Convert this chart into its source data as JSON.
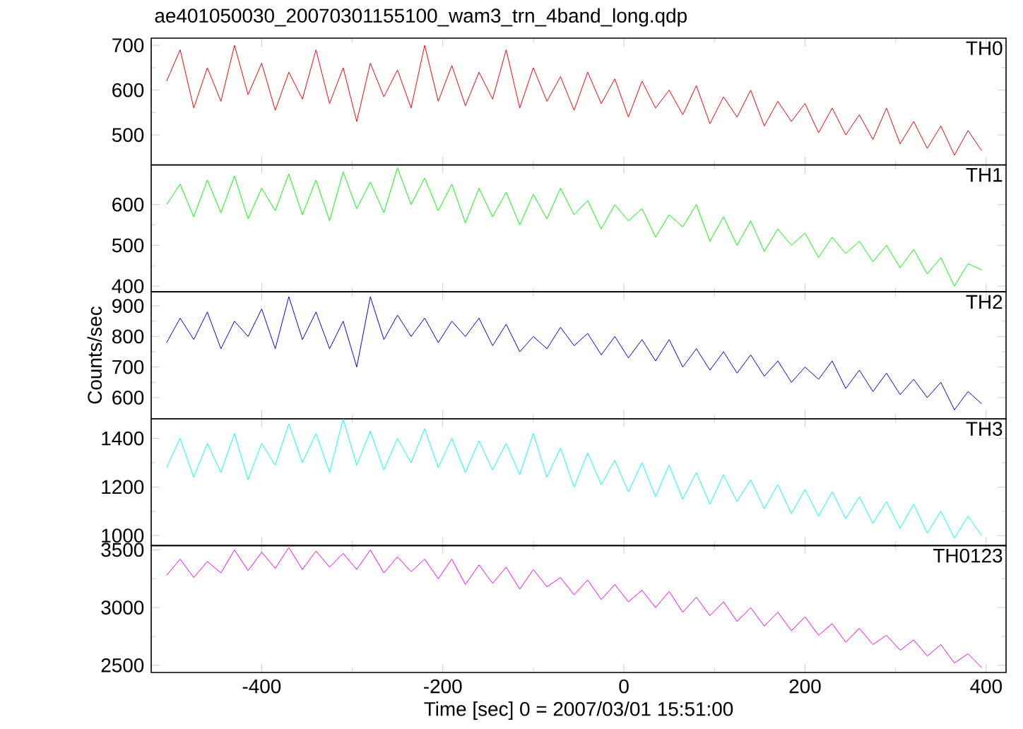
{
  "chart_data": [
    {
      "type": "line",
      "title": "ae401050030_20070301155100_wam3_trn_4band_long.qdp",
      "xlim": [
        -522,
        422
      ],
      "xticks": [
        -400,
        -200,
        0,
        200,
        400
      ],
      "ylim": [
        433,
        716
      ],
      "yticks": [
        500,
        600,
        700
      ],
      "tick_labels": "y",
      "x": [
        -505,
        -490,
        -475,
        -460,
        -445,
        -430,
        -415,
        -400,
        -385,
        -370,
        -355,
        -340,
        -325,
        -310,
        -295,
        -280,
        -265,
        -250,
        -235,
        -220,
        -205,
        -190,
        -175,
        -160,
        -145,
        -130,
        -115,
        -100,
        -85,
        -70,
        -55,
        -40,
        -25,
        -10,
        5,
        20,
        35,
        50,
        65,
        80,
        95,
        110,
        125,
        140,
        155,
        170,
        185,
        200,
        215,
        230,
        245,
        260,
        275,
        290,
        305,
        320,
        335,
        350,
        365,
        380,
        395
      ],
      "series": [
        {
          "name": "TH0",
          "color": "#ff0000",
          "values": [
            620,
            690,
            560,
            650,
            575,
            700,
            590,
            660,
            555,
            640,
            580,
            690,
            570,
            650,
            530,
            660,
            585,
            645,
            560,
            700,
            575,
            655,
            565,
            640,
            580,
            690,
            560,
            650,
            575,
            630,
            555,
            640,
            570,
            625,
            540,
            620,
            560,
            600,
            545,
            610,
            525,
            585,
            540,
            600,
            520,
            575,
            530,
            570,
            505,
            560,
            500,
            545,
            490,
            560,
            480,
            530,
            470,
            520,
            455,
            510,
            465
          ]
        }
      ]
    },
    {
      "type": "line",
      "xlim": [
        -522,
        422
      ],
      "xticks": [
        -400,
        -200,
        0,
        200,
        400
      ],
      "ylim": [
        386,
        697
      ],
      "yticks": [
        400,
        500,
        600
      ],
      "tick_labels": "y",
      "x": [
        -505,
        -490,
        -475,
        -460,
        -445,
        -430,
        -415,
        -400,
        -385,
        -370,
        -355,
        -340,
        -325,
        -310,
        -295,
        -280,
        -265,
        -250,
        -235,
        -220,
        -205,
        -190,
        -175,
        -160,
        -145,
        -130,
        -115,
        -100,
        -85,
        -70,
        -55,
        -40,
        -25,
        -10,
        5,
        20,
        35,
        50,
        65,
        80,
        95,
        110,
        125,
        140,
        155,
        170,
        185,
        200,
        215,
        230,
        245,
        260,
        275,
        290,
        305,
        320,
        335,
        350,
        365,
        380,
        395
      ],
      "series": [
        {
          "name": "TH1",
          "color": "#00ff00",
          "values": [
            600,
            650,
            570,
            660,
            580,
            670,
            565,
            640,
            585,
            675,
            575,
            660,
            560,
            680,
            590,
            655,
            580,
            690,
            600,
            665,
            585,
            650,
            555,
            640,
            570,
            630,
            550,
            625,
            565,
            640,
            575,
            610,
            540,
            600,
            560,
            590,
            520,
            575,
            545,
            600,
            510,
            570,
            500,
            560,
            485,
            540,
            500,
            530,
            470,
            520,
            480,
            510,
            460,
            500,
            445,
            490,
            430,
            470,
            400,
            455,
            440
          ]
        }
      ]
    },
    {
      "type": "line",
      "ylabel": "Counts/sec",
      "xlim": [
        -522,
        422
      ],
      "xticks": [
        -400,
        -200,
        0,
        200,
        400
      ],
      "ylim": [
        531,
        946
      ],
      "yticks": [
        600,
        700,
        800,
        900
      ],
      "tick_labels": "y",
      "x": [
        -505,
        -490,
        -475,
        -460,
        -445,
        -430,
        -415,
        -400,
        -385,
        -370,
        -355,
        -340,
        -325,
        -310,
        -295,
        -280,
        -265,
        -250,
        -235,
        -220,
        -205,
        -190,
        -175,
        -160,
        -145,
        -130,
        -115,
        -100,
        -85,
        -70,
        -55,
        -40,
        -25,
        -10,
        5,
        20,
        35,
        50,
        65,
        80,
        95,
        110,
        125,
        140,
        155,
        170,
        185,
        200,
        215,
        230,
        245,
        260,
        275,
        290,
        305,
        320,
        335,
        350,
        365,
        380,
        395
      ],
      "series": [
        {
          "name": "TH2",
          "color": "#0000ff",
          "values": [
            780,
            860,
            790,
            880,
            760,
            850,
            800,
            890,
            760,
            930,
            790,
            880,
            760,
            850,
            700,
            930,
            790,
            870,
            800,
            860,
            780,
            850,
            800,
            860,
            770,
            840,
            750,
            800,
            760,
            830,
            770,
            810,
            740,
            800,
            730,
            790,
            720,
            790,
            700,
            760,
            690,
            750,
            680,
            740,
            670,
            720,
            650,
            700,
            660,
            720,
            630,
            690,
            620,
            680,
            610,
            660,
            600,
            650,
            560,
            620,
            580
          ]
        }
      ]
    },
    {
      "type": "line",
      "xlim": [
        -522,
        422
      ],
      "xticks": [
        -400,
        -200,
        0,
        200,
        400
      ],
      "ylim": [
        959,
        1481
      ],
      "yticks": [
        1000,
        1200,
        1400
      ],
      "tick_labels": "y",
      "x": [
        -505,
        -490,
        -475,
        -460,
        -445,
        -430,
        -415,
        -400,
        -385,
        -370,
        -355,
        -340,
        -325,
        -310,
        -295,
        -280,
        -265,
        -250,
        -235,
        -220,
        -205,
        -190,
        -175,
        -160,
        -145,
        -130,
        -115,
        -100,
        -85,
        -70,
        -55,
        -40,
        -25,
        -10,
        5,
        20,
        35,
        50,
        65,
        80,
        95,
        110,
        125,
        140,
        155,
        170,
        185,
        200,
        215,
        230,
        245,
        260,
        275,
        290,
        305,
        320,
        335,
        350,
        365,
        380,
        395
      ],
      "series": [
        {
          "name": "TH3",
          "color": "#00ffff",
          "values": [
            1280,
            1400,
            1240,
            1380,
            1260,
            1420,
            1230,
            1380,
            1290,
            1460,
            1300,
            1420,
            1260,
            1480,
            1290,
            1430,
            1270,
            1400,
            1300,
            1440,
            1280,
            1400,
            1260,
            1390,
            1270,
            1380,
            1250,
            1420,
            1240,
            1360,
            1200,
            1340,
            1210,
            1310,
            1180,
            1300,
            1160,
            1290,
            1150,
            1260,
            1130,
            1250,
            1140,
            1230,
            1110,
            1210,
            1090,
            1190,
            1080,
            1180,
            1070,
            1160,
            1050,
            1140,
            1030,
            1130,
            1010,
            1100,
            990,
            1080,
            1000
          ]
        }
      ]
    },
    {
      "type": "line",
      "xlabel": "Time [sec] 0 = 2007/03/01 15:51:00",
      "xlim": [
        -522,
        422
      ],
      "xticks": [
        -400,
        -200,
        0,
        200,
        400
      ],
      "ylim": [
        2438,
        3537
      ],
      "yticks": [
        2500,
        3000,
        3500
      ],
      "x": [
        -505,
        -490,
        -475,
        -460,
        -445,
        -430,
        -415,
        -400,
        -385,
        -370,
        -355,
        -340,
        -325,
        -310,
        -295,
        -280,
        -265,
        -250,
        -235,
        -220,
        -205,
        -190,
        -175,
        -160,
        -145,
        -130,
        -115,
        -100,
        -85,
        -70,
        -55,
        -40,
        -25,
        -10,
        5,
        20,
        35,
        50,
        65,
        80,
        95,
        110,
        125,
        140,
        155,
        170,
        185,
        200,
        215,
        230,
        245,
        260,
        275,
        290,
        305,
        320,
        335,
        350,
        365,
        380,
        395
      ],
      "series": [
        {
          "name": "TH0123",
          "color": "#ff00ff",
          "values": [
            3280,
            3420,
            3260,
            3400,
            3300,
            3500,
            3320,
            3480,
            3340,
            3520,
            3330,
            3490,
            3350,
            3470,
            3330,
            3500,
            3300,
            3440,
            3310,
            3420,
            3250,
            3420,
            3200,
            3370,
            3210,
            3350,
            3160,
            3330,
            3180,
            3260,
            3110,
            3240,
            3070,
            3200,
            3050,
            3150,
            3000,
            3140,
            2960,
            3090,
            2930,
            3050,
            2880,
            3000,
            2840,
            2960,
            2800,
            2920,
            2760,
            2860,
            2700,
            2820,
            2680,
            2760,
            2630,
            2720,
            2580,
            2680,
            2520,
            2600,
            2480
          ]
        }
      ]
    }
  ]
}
